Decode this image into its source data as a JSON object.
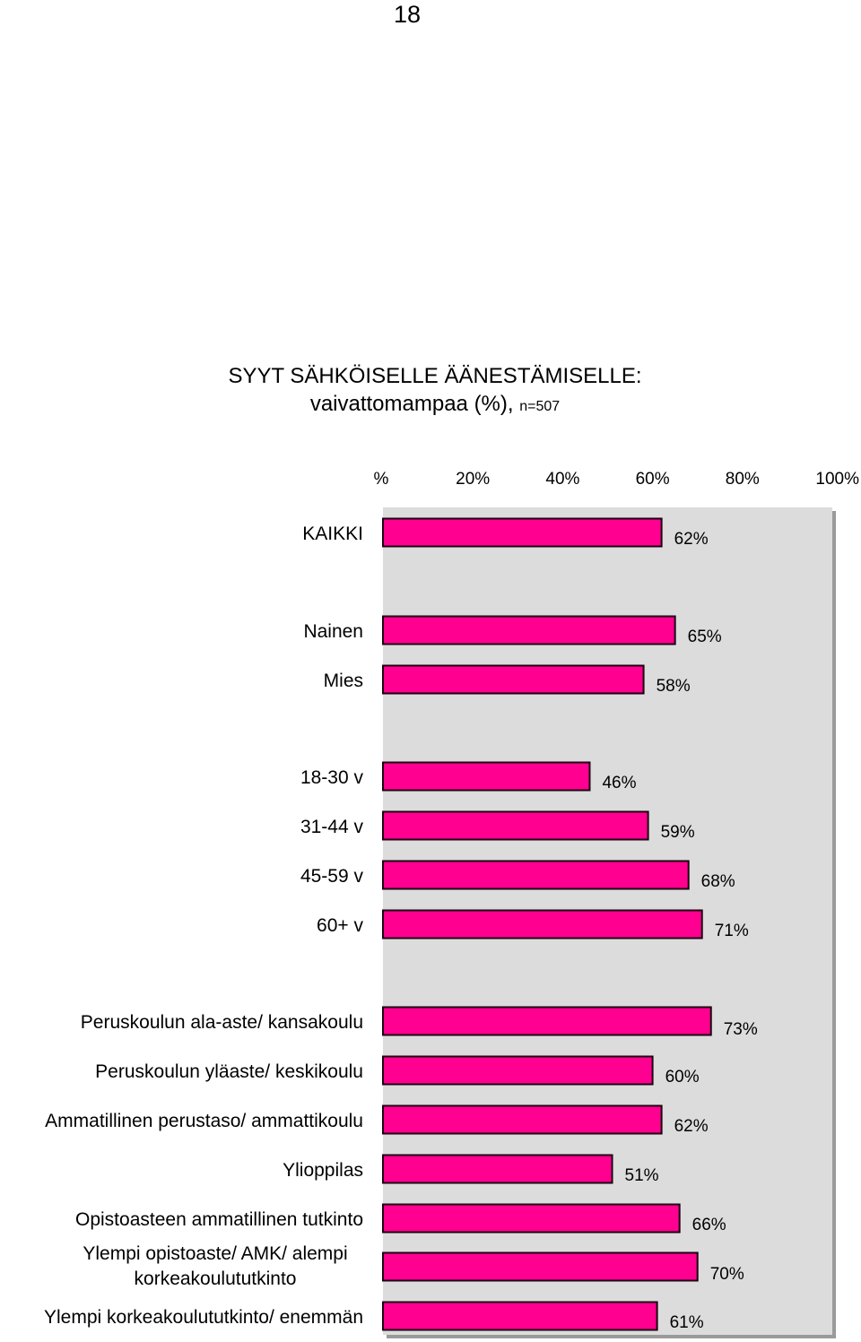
{
  "page_number": "18",
  "title": {
    "line1": "SYYT SÄHKÖISELLE ÄÄNESTÄMISELLE:",
    "line2_main": "vaivattomampaa (%),",
    "line2_small": "n=507"
  },
  "colors": {
    "bar_fill": "#ff0090",
    "bar_stroke": "#1a0010",
    "plot_background": "#dcdcdc",
    "plot_shadow": "#9a9a9a"
  },
  "chart_data": {
    "type": "bar",
    "orientation": "horizontal",
    "xlim": [
      0,
      100
    ],
    "x_tick_labels": [
      "%",
      "20%",
      "40%",
      "60%",
      "80%",
      "100%"
    ],
    "x_ticks": [
      0,
      20,
      40,
      60,
      80,
      100
    ],
    "grid": false,
    "legend": "none",
    "categories": [
      "KAIKKI",
      "Nainen",
      "Mies",
      "18-30 v",
      "31-44 v",
      "45-59 v",
      "60+ v",
      "Peruskoulun ala-aste/ kansakoulu",
      "Peruskoulun yläaste/ keskikoulu",
      "Ammatillinen perustaso/ ammattikoulu",
      "Ylioppilas",
      "Opistoasteen ammatillinen tutkinto",
      "Ylempi opistoaste/ AMK/ alempi korkeakoulututkinto",
      "Ylempi korkeakoulututkinto/ enemmän"
    ],
    "category_lines": [
      [
        "KAIKKI"
      ],
      [
        "Nainen"
      ],
      [
        "Mies"
      ],
      [
        "18-30 v"
      ],
      [
        "31-44 v"
      ],
      [
        "45-59 v"
      ],
      [
        "60+ v"
      ],
      [
        "Peruskoulun ala-aste/ kansakoulu"
      ],
      [
        "Peruskoulun yläaste/ keskikoulu"
      ],
      [
        "Ammatillinen perustaso/ ammattikoulu"
      ],
      [
        "Ylioppilas"
      ],
      [
        "Opistoasteen ammatillinen tutkinto"
      ],
      [
        "Ylempi opistoaste/ AMK/ alempi",
        "korkeakoulututkinto"
      ],
      [
        "Ylempi korkeakoulututkinto/ enemmän"
      ]
    ],
    "values": [
      62,
      65,
      58,
      46,
      59,
      68,
      71,
      73,
      60,
      62,
      51,
      66,
      70,
      61
    ],
    "value_labels": [
      "62%",
      "65%",
      "58%",
      "46%",
      "59%",
      "68%",
      "71%",
      "73%",
      "60%",
      "62%",
      "51%",
      "66%",
      "70%",
      "61%"
    ]
  }
}
